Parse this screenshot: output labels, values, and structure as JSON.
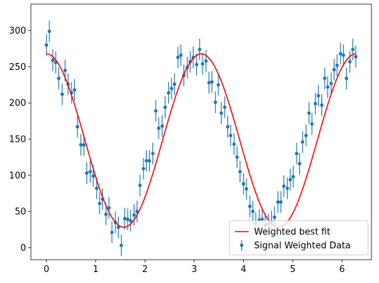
{
  "chart_data": {
    "type": "scatter",
    "title": "",
    "xlabel": "",
    "ylabel": "",
    "xlim": [
      -0.3147,
      6.5979
    ],
    "ylim": [
      -16.8,
      336.7
    ],
    "xticks": [
      0,
      1,
      2,
      3,
      4,
      5,
      6
    ],
    "yticks": [
      0,
      50,
      100,
      150,
      200,
      250,
      300
    ],
    "grid": false,
    "legend_position": "bottom-right",
    "series": [
      {
        "name": "Weighted best fit",
        "kind": "line",
        "color": "#ff0000",
        "model": {
          "amplitude": 120,
          "offset": 148,
          "frequency": 2,
          "x_min": 0,
          "x_max": 6.2832,
          "samples": 200
        }
      },
      {
        "name": "Signal Weighted Data",
        "kind": "errorbar",
        "color": "#1f77b4",
        "x": [
          0.0,
          0.06,
          0.13,
          0.19,
          0.25,
          0.32,
          0.38,
          0.44,
          0.51,
          0.57,
          0.63,
          0.7,
          0.76,
          0.82,
          0.89,
          0.95,
          1.02,
          1.08,
          1.14,
          1.21,
          1.27,
          1.33,
          1.4,
          1.46,
          1.52,
          1.59,
          1.65,
          1.71,
          1.78,
          1.84,
          1.9,
          1.97,
          2.03,
          2.09,
          2.16,
          2.22,
          2.28,
          2.35,
          2.41,
          2.48,
          2.54,
          2.6,
          2.67,
          2.73,
          2.79,
          2.86,
          2.92,
          2.98,
          3.05,
          3.11,
          3.17,
          3.24,
          3.3,
          3.36,
          3.43,
          3.49,
          3.55,
          3.62,
          3.68,
          3.74,
          3.81,
          3.87,
          3.93,
          4.0,
          4.06,
          4.13,
          4.19,
          4.25,
          4.32,
          4.38,
          4.44,
          4.51,
          4.57,
          4.63,
          4.7,
          4.76,
          4.82,
          4.89,
          4.95,
          5.01,
          5.08,
          5.14,
          5.2,
          5.27,
          5.33,
          5.39,
          5.46,
          5.52,
          5.59,
          5.65,
          5.71,
          5.78,
          5.84,
          5.9,
          5.97,
          6.03,
          6.09,
          6.16,
          6.22,
          6.28
        ],
        "y": [
          280,
          299,
          259,
          256,
          234,
          212,
          245,
          226,
          214,
          218,
          167,
          142,
          142,
          103,
          105,
          99,
          82,
          61,
          67,
          46,
          55,
          21,
          35,
          28,
          3,
          40,
          39,
          37,
          45,
          50,
          86,
          109,
          120,
          120,
          130,
          189,
          165,
          168,
          194,
          214,
          220,
          226,
          263,
          266,
          238,
          249,
          257,
          263,
          253,
          274,
          254,
          258,
          228,
          229,
          201,
          225,
          186,
          194,
          167,
          155,
          143,
          125,
          105,
          88,
          81,
          57,
          50,
          34,
          38,
          39,
          31,
          32,
          36,
          42,
          63,
          63,
          85,
          82,
          94,
          98,
          130,
          116,
          146,
          155,
          186,
          171,
          199,
          210,
          197,
          234,
          222,
          227,
          246,
          252,
          268,
          266,
          234,
          257,
          274,
          264
        ],
        "yerr": [
          15,
          15,
          15,
          15,
          15,
          15,
          15,
          15,
          15,
          15,
          15,
          15,
          15,
          15,
          15,
          15,
          15,
          15,
          15,
          15,
          15,
          15,
          15,
          15,
          15,
          15,
          15,
          15,
          15,
          15,
          15,
          15,
          15,
          15,
          15,
          15,
          15,
          15,
          15,
          15,
          15,
          15,
          15,
          15,
          15,
          15,
          15,
          15,
          15,
          15,
          15,
          15,
          15,
          15,
          15,
          15,
          15,
          15,
          15,
          15,
          15,
          15,
          15,
          15,
          15,
          15,
          15,
          15,
          15,
          15,
          15,
          15,
          15,
          15,
          15,
          15,
          15,
          15,
          15,
          15,
          15,
          15,
          15,
          15,
          15,
          15,
          15,
          15,
          15,
          15,
          15,
          15,
          15,
          15,
          15,
          15,
          15,
          15,
          15,
          15
        ]
      }
    ]
  }
}
